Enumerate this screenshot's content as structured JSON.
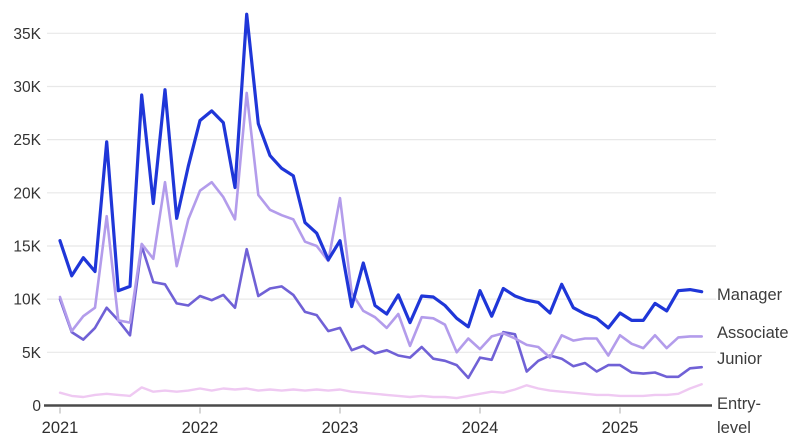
{
  "chart_data": {
    "type": "line",
    "title": "",
    "interval": "monthly",
    "x_start": "2021-01",
    "x_end": "2025-08",
    "x_axis": {
      "tick_labels": [
        "2021",
        "2022",
        "2023",
        "2024",
        "2025"
      ],
      "tick_month_index": [
        0,
        12,
        24,
        36,
        48
      ]
    },
    "y_axis": {
      "tick_labels": [
        "0",
        "5K",
        "10K",
        "15K",
        "20K",
        "25K",
        "30K",
        "35K"
      ],
      "tick_values": [
        0,
        5000,
        10000,
        15000,
        20000,
        25000,
        30000,
        35000
      ],
      "ylim": [
        0,
        37000
      ]
    },
    "grid": "horizontal-only",
    "legend_position": "right-end-labels",
    "series": [
      {
        "name": "Manager",
        "label_lines": [
          "Manager"
        ],
        "color": "#1f36d8",
        "values": [
          15500,
          12200,
          13900,
          12600,
          24800,
          10800,
          11200,
          29200,
          19000,
          29700,
          17600,
          22500,
          26800,
          27700,
          26600,
          20500,
          36800,
          26500,
          23500,
          22300,
          21600,
          17200,
          16200,
          13700,
          15500,
          9300,
          13400,
          9400,
          8600,
          10400,
          7800,
          10300,
          10200,
          9400,
          8200,
          7400,
          10800,
          8400,
          11000,
          10300,
          9900,
          9700,
          8700,
          11400,
          9200,
          8600,
          8200,
          7300,
          8700,
          8000,
          8000,
          9600,
          8900,
          10800,
          10900,
          10700
        ]
      },
      {
        "name": "Associate",
        "label_lines": [
          "Associate"
        ],
        "color": "#b39ceb",
        "values": [
          10200,
          7000,
          8400,
          9200,
          17800,
          8000,
          7800,
          15200,
          13800,
          21000,
          13100,
          17500,
          20200,
          21000,
          19600,
          17500,
          29400,
          19800,
          18400,
          17900,
          17500,
          15400,
          15000,
          13600,
          19500,
          10600,
          8900,
          8300,
          7300,
          8600,
          5600,
          8300,
          8200,
          7600,
          5000,
          6300,
          5300,
          6500,
          6800,
          6300,
          5700,
          5500,
          4500,
          6600,
          6100,
          6300,
          6300,
          4700,
          6600,
          5800,
          5400,
          6600,
          5400,
          6400,
          6500,
          6500
        ]
      },
      {
        "name": "Junior",
        "label_lines": [
          "Junior"
        ],
        "color": "#7061d6",
        "values": [
          10000,
          6900,
          6200,
          7300,
          9200,
          8000,
          6600,
          15000,
          11600,
          11400,
          9600,
          9400,
          10300,
          9900,
          10400,
          9200,
          14700,
          10300,
          11000,
          11200,
          10400,
          8800,
          8500,
          7000,
          7300,
          5200,
          5600,
          4900,
          5200,
          4700,
          4500,
          5500,
          4400,
          4200,
          3800,
          2600,
          4500,
          4300,
          6900,
          6700,
          3200,
          4200,
          4700,
          4400,
          3700,
          4000,
          3200,
          3800,
          3800,
          3100,
          3000,
          3100,
          2700,
          2700,
          3500,
          3600
        ]
      },
      {
        "name": "Entry-level",
        "label_lines": [
          "Entry-",
          "level"
        ],
        "color": "#efc9f2",
        "values": [
          1200,
          900,
          800,
          1000,
          1100,
          1000,
          900,
          1700,
          1300,
          1400,
          1300,
          1400,
          1600,
          1400,
          1600,
          1500,
          1600,
          1400,
          1500,
          1400,
          1500,
          1400,
          1500,
          1400,
          1500,
          1300,
          1200,
          1100,
          1000,
          900,
          800,
          900,
          800,
          800,
          700,
          900,
          1100,
          1300,
          1200,
          1500,
          1900,
          1600,
          1400,
          1300,
          1200,
          1100,
          1000,
          1000,
          900,
          900,
          900,
          1000,
          1000,
          1100,
          1600,
          2000
        ]
      }
    ],
    "style_colors": {
      "gridline": "#e8e8e8",
      "axis_line": "#4a4a4a",
      "tick_mark": "#c8c8c8",
      "tick_text": "#333333",
      "series_label_text": "#3c3c3c",
      "background": "#ffffff"
    }
  }
}
